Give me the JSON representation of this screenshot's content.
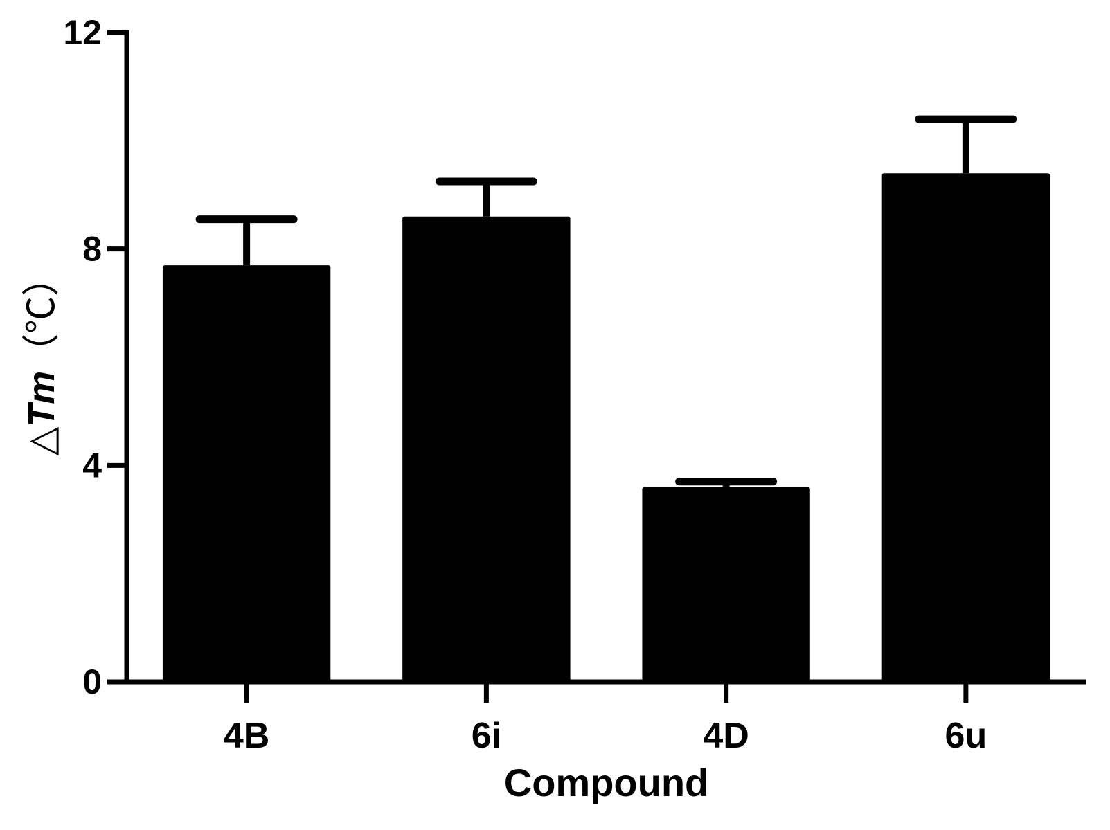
{
  "chart_data": {
    "type": "bar",
    "categories": [
      "4B",
      "6i",
      "4D",
      "6u"
    ],
    "series": [
      {
        "values": [
          7.7,
          8.6,
          3.6,
          9.4
        ],
        "error": [
          0.85,
          0.65,
          0.1,
          1.0
        ]
      }
    ],
    "title": "",
    "xlabel": "Compound",
    "ylabel": "△Tm（℃）",
    "ylabel_parts": {
      "delta": "△",
      "symbol": "Tm",
      "unit": "（℃）"
    },
    "ylim": [
      0,
      12
    ],
    "yticks": [
      "0",
      "4",
      "8",
      "12"
    ],
    "grid": false,
    "legend": "none",
    "colors": {
      "bar": "#000000",
      "axis": "#000000",
      "background": "#ffffff"
    }
  }
}
